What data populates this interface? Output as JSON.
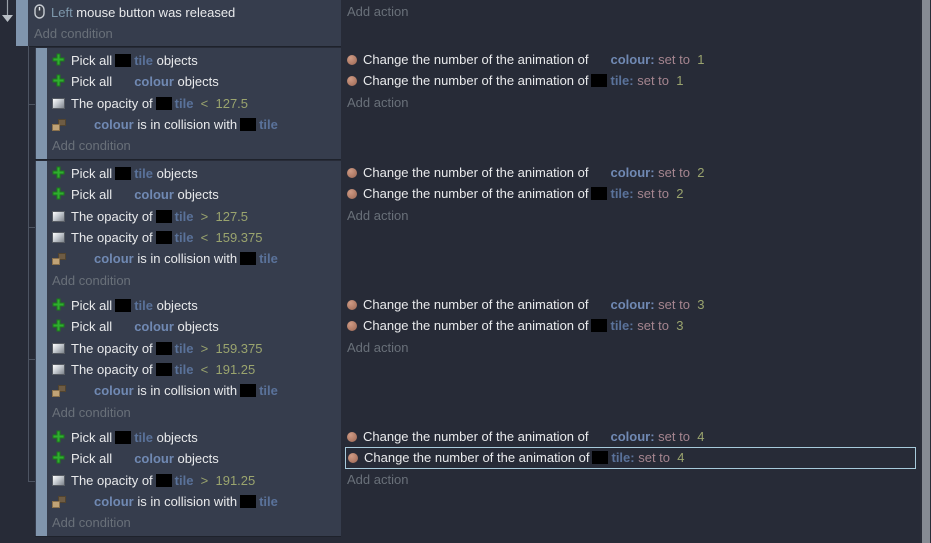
{
  "labels": {
    "add_condition": "Add condition",
    "add_action": "Add action"
  },
  "colors": {
    "selection_border": "#a7cadb",
    "indent_bar": "#8095ad",
    "object_colour": "#7089b3",
    "object_tile": "#5a729a",
    "value_text": "#9aa46e",
    "set_to_text": "#a5858f",
    "condition_background": "#363d4d",
    "page_background": "#272b37"
  },
  "top_event": {
    "conditions": [
      {
        "icon": "mouse",
        "segments": [
          {
            "v": "Left",
            "c": "key"
          },
          {
            "v": " mouse button was released",
            "c": "plain"
          }
        ]
      }
    ],
    "actions": []
  },
  "groups": [
    {
      "conditions": [
        {
          "icon": "pick",
          "segments": [
            {
              "v": "Pick all",
              "c": "plain"
            },
            {
              "img": "tile"
            },
            {
              "v": "tile",
              "c": "obj-tile"
            },
            {
              "v": " objects",
              "c": "plain"
            }
          ]
        },
        {
          "icon": "pick",
          "segments": [
            {
              "v": "Pick all",
              "c": "plain"
            },
            {
              "img": "blank"
            },
            {
              "v": "colour",
              "c": "obj-colour"
            },
            {
              "v": " objects",
              "c": "plain"
            }
          ]
        },
        {
          "icon": "opacity",
          "segments": [
            {
              "v": "The opacity of",
              "c": "plain"
            },
            {
              "img": "tile"
            },
            {
              "v": "tile",
              "c": "obj-tile"
            },
            {
              "v": "  <  127.5",
              "c": "num"
            }
          ]
        },
        {
          "icon": "collision",
          "segments": [
            {
              "img": "blank"
            },
            {
              "v": "colour",
              "c": "obj-colour"
            },
            {
              "v": " is in collision with",
              "c": "plain"
            },
            {
              "img": "tile"
            },
            {
              "v": "tile",
              "c": "obj-tile"
            }
          ]
        }
      ],
      "actions": [
        {
          "icon": "action",
          "segments": [
            {
              "v": "Change the number of the animation of",
              "c": "plain"
            },
            {
              "img": "blank"
            },
            {
              "v": "colour:",
              "c": "obj-colour"
            },
            {
              "v": " set to ",
              "c": "setto"
            },
            {
              "v": " 1",
              "c": "num"
            }
          ]
        },
        {
          "icon": "action",
          "segments": [
            {
              "v": "Change the number of the animation of",
              "c": "plain"
            },
            {
              "img": "tile"
            },
            {
              "v": "tile:",
              "c": "obj-tile"
            },
            {
              "v": " set to ",
              "c": "setto"
            },
            {
              "v": " 1",
              "c": "num"
            }
          ]
        }
      ]
    },
    {
      "conditions": [
        {
          "icon": "pick",
          "segments": [
            {
              "v": "Pick all",
              "c": "plain"
            },
            {
              "img": "tile"
            },
            {
              "v": "tile",
              "c": "obj-tile"
            },
            {
              "v": " objects",
              "c": "plain"
            }
          ]
        },
        {
          "icon": "pick",
          "segments": [
            {
              "v": "Pick all",
              "c": "plain"
            },
            {
              "img": "blank"
            },
            {
              "v": "colour",
              "c": "obj-colour"
            },
            {
              "v": " objects",
              "c": "plain"
            }
          ]
        },
        {
          "icon": "opacity",
          "segments": [
            {
              "v": "The opacity of",
              "c": "plain"
            },
            {
              "img": "tile"
            },
            {
              "v": "tile",
              "c": "obj-tile"
            },
            {
              "v": "  >  127.5",
              "c": "num"
            }
          ]
        },
        {
          "icon": "opacity",
          "segments": [
            {
              "v": "The opacity of",
              "c": "plain"
            },
            {
              "img": "tile"
            },
            {
              "v": "tile",
              "c": "obj-tile"
            },
            {
              "v": "  <  159.375",
              "c": "num"
            }
          ]
        },
        {
          "icon": "collision",
          "segments": [
            {
              "img": "blank"
            },
            {
              "v": "colour",
              "c": "obj-colour"
            },
            {
              "v": " is in collision with",
              "c": "plain"
            },
            {
              "img": "tile"
            },
            {
              "v": "tile",
              "c": "obj-tile"
            }
          ]
        }
      ],
      "actions": [
        {
          "icon": "action",
          "segments": [
            {
              "v": "Change the number of the animation of",
              "c": "plain"
            },
            {
              "img": "blank"
            },
            {
              "v": "colour:",
              "c": "obj-colour"
            },
            {
              "v": " set to ",
              "c": "setto"
            },
            {
              "v": " 2",
              "c": "num"
            }
          ]
        },
        {
          "icon": "action",
          "segments": [
            {
              "v": "Change the number of the animation of",
              "c": "plain"
            },
            {
              "img": "tile"
            },
            {
              "v": "tile:",
              "c": "obj-tile"
            },
            {
              "v": " set to ",
              "c": "setto"
            },
            {
              "v": " 2",
              "c": "num"
            }
          ]
        }
      ]
    },
    {
      "conditions": [
        {
          "icon": "pick",
          "segments": [
            {
              "v": "Pick all",
              "c": "plain"
            },
            {
              "img": "tile"
            },
            {
              "v": "tile",
              "c": "obj-tile"
            },
            {
              "v": " objects",
              "c": "plain"
            }
          ]
        },
        {
          "icon": "pick",
          "segments": [
            {
              "v": "Pick all",
              "c": "plain"
            },
            {
              "img": "blank"
            },
            {
              "v": "colour",
              "c": "obj-colour"
            },
            {
              "v": " objects",
              "c": "plain"
            }
          ]
        },
        {
          "icon": "opacity",
          "segments": [
            {
              "v": "The opacity of",
              "c": "plain"
            },
            {
              "img": "tile"
            },
            {
              "v": "tile",
              "c": "obj-tile"
            },
            {
              "v": "  >  159.375",
              "c": "num"
            }
          ]
        },
        {
          "icon": "opacity",
          "segments": [
            {
              "v": "The opacity of",
              "c": "plain"
            },
            {
              "img": "tile"
            },
            {
              "v": "tile",
              "c": "obj-tile"
            },
            {
              "v": "  <  191.25",
              "c": "num"
            }
          ]
        },
        {
          "icon": "collision",
          "segments": [
            {
              "img": "blank"
            },
            {
              "v": "colour",
              "c": "obj-colour"
            },
            {
              "v": " is in collision with",
              "c": "plain"
            },
            {
              "img": "tile"
            },
            {
              "v": "tile",
              "c": "obj-tile"
            }
          ]
        }
      ],
      "actions": [
        {
          "icon": "action",
          "segments": [
            {
              "v": "Change the number of the animation of",
              "c": "plain"
            },
            {
              "img": "blank"
            },
            {
              "v": "colour:",
              "c": "obj-colour"
            },
            {
              "v": " set to ",
              "c": "setto"
            },
            {
              "v": " 3",
              "c": "num"
            }
          ]
        },
        {
          "icon": "action",
          "segments": [
            {
              "v": "Change the number of the animation of",
              "c": "plain"
            },
            {
              "img": "tile"
            },
            {
              "v": "tile:",
              "c": "obj-tile"
            },
            {
              "v": " set to ",
              "c": "setto"
            },
            {
              "v": " 3",
              "c": "num"
            }
          ]
        }
      ]
    },
    {
      "conditions": [
        {
          "icon": "pick",
          "segments": [
            {
              "v": "Pick all",
              "c": "plain"
            },
            {
              "img": "tile"
            },
            {
              "v": "tile",
              "c": "obj-tile"
            },
            {
              "v": " objects",
              "c": "plain"
            }
          ]
        },
        {
          "icon": "pick",
          "segments": [
            {
              "v": "Pick all",
              "c": "plain"
            },
            {
              "img": "blank"
            },
            {
              "v": "colour",
              "c": "obj-colour"
            },
            {
              "v": " objects",
              "c": "plain"
            }
          ]
        },
        {
          "icon": "opacity",
          "segments": [
            {
              "v": "The opacity of",
              "c": "plain"
            },
            {
              "img": "tile"
            },
            {
              "v": "tile",
              "c": "obj-tile"
            },
            {
              "v": "  >  191.25",
              "c": "num"
            }
          ]
        },
        {
          "icon": "collision",
          "segments": [
            {
              "img": "blank"
            },
            {
              "v": "colour",
              "c": "obj-colour"
            },
            {
              "v": " is in collision with",
              "c": "plain"
            },
            {
              "img": "tile"
            },
            {
              "v": "tile",
              "c": "obj-tile"
            }
          ]
        }
      ],
      "actions": [
        {
          "icon": "action",
          "segments": [
            {
              "v": "Change the number of the animation of",
              "c": "plain"
            },
            {
              "img": "blank"
            },
            {
              "v": "colour:",
              "c": "obj-colour"
            },
            {
              "v": " set to ",
              "c": "setto"
            },
            {
              "v": " 4",
              "c": "num"
            }
          ]
        },
        {
          "icon": "action",
          "selected": true,
          "segments": [
            {
              "v": "Change the number of the animation of",
              "c": "plain"
            },
            {
              "img": "tile"
            },
            {
              "v": "tile:",
              "c": "obj-tile"
            },
            {
              "v": " set to ",
              "c": "setto"
            },
            {
              "v": " 4",
              "c": "num"
            }
          ]
        }
      ]
    }
  ]
}
